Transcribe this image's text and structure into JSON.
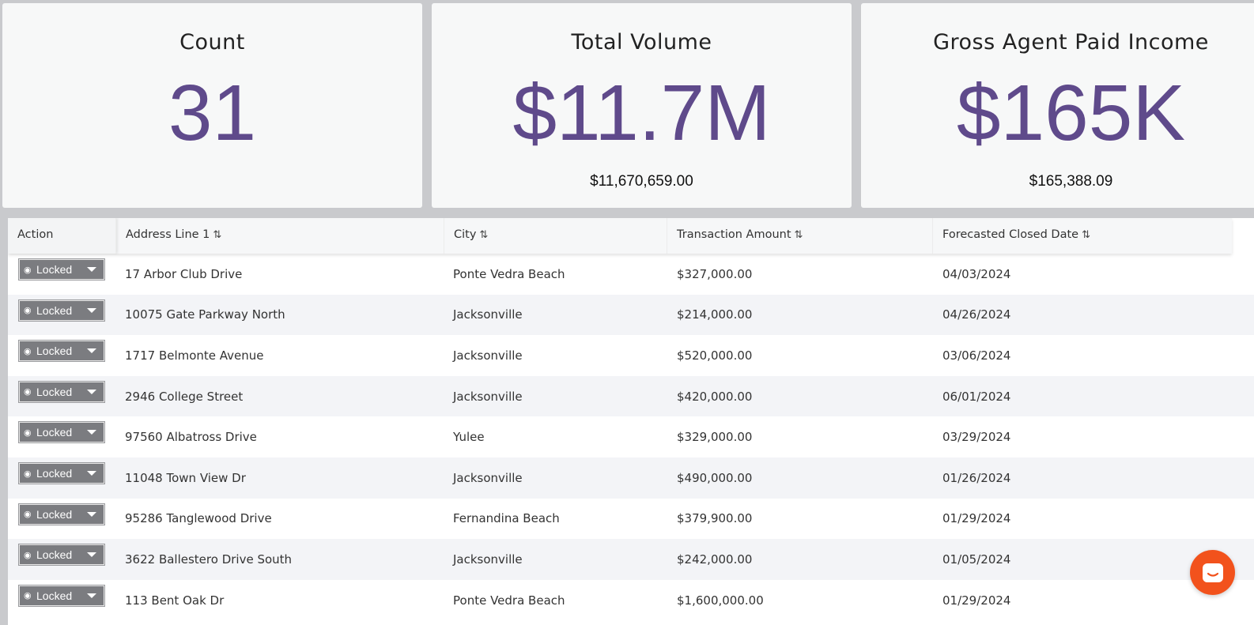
{
  "stats": [
    {
      "title": "Count",
      "value": "31",
      "sub": ""
    },
    {
      "title": "Total Volume",
      "value": "$11.7M",
      "sub": "$11,670,659.00"
    },
    {
      "title": "Gross Agent Paid Income",
      "value": "$165K",
      "sub": "$165,388.09"
    }
  ],
  "table": {
    "headers": {
      "action": "Action",
      "address": "Address Line 1",
      "city": "City",
      "amount": "Transaction Amount",
      "date": "Forecasted Closed Date"
    },
    "sort_icon": "⇅",
    "lock_label": "Locked",
    "rows": [
      {
        "address": "17 Arbor Club Drive",
        "city": "Ponte Vedra Beach",
        "amount": "$327,000.00",
        "date": "04/03/2024"
      },
      {
        "address": "10075 Gate Parkway North",
        "city": "Jacksonville",
        "amount": "$214,000.00",
        "date": "04/26/2024"
      },
      {
        "address": "1717 Belmonte Avenue",
        "city": "Jacksonville",
        "amount": "$520,000.00",
        "date": "03/06/2024"
      },
      {
        "address": "2946 College Street",
        "city": "Jacksonville",
        "amount": "$420,000.00",
        "date": "06/01/2024"
      },
      {
        "address": "97560 Albatross Drive",
        "city": "Yulee",
        "amount": "$329,000.00",
        "date": "03/29/2024"
      },
      {
        "address": "11048 Town View Dr",
        "city": "Jacksonville",
        "amount": "$490,000.00",
        "date": "01/26/2024"
      },
      {
        "address": "95286 Tanglewood Drive",
        "city": "Fernandina Beach",
        "amount": "$379,900.00",
        "date": "01/29/2024"
      },
      {
        "address": "3622 Ballestero Drive South",
        "city": "Jacksonville",
        "amount": "$242,000.00",
        "date": "01/05/2024"
      },
      {
        "address": "113 Bent Oak Dr",
        "city": "Ponte Vedra Beach",
        "amount": "$1,600,000.00",
        "date": "01/29/2024"
      }
    ]
  },
  "colors": {
    "accent": "#5f4a8b",
    "button": "#7b7c80",
    "chat": "#f2521c"
  }
}
